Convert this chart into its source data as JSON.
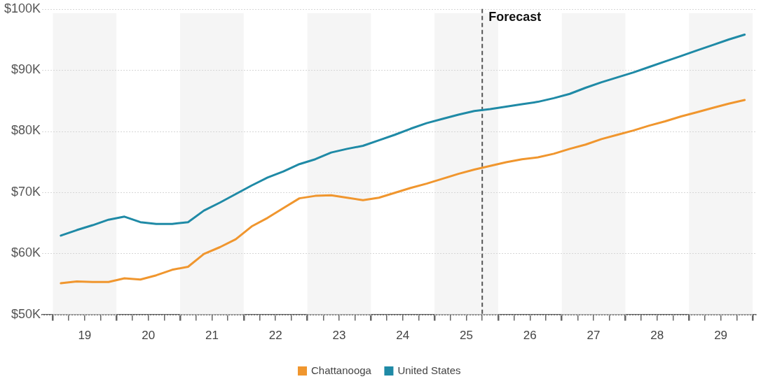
{
  "chart_data": {
    "type": "line",
    "x": [
      18.625,
      18.875,
      19.125,
      19.375,
      19.625,
      19.875,
      20.125,
      20.375,
      20.625,
      20.875,
      21.125,
      21.375,
      21.625,
      21.875,
      22.125,
      22.375,
      22.625,
      22.875,
      23.125,
      23.375,
      23.625,
      23.875,
      24.125,
      24.375,
      24.625,
      24.875,
      25.125,
      25.375,
      25.625,
      25.875,
      26.125,
      26.375,
      26.625,
      26.875,
      27.125,
      27.375,
      27.625,
      27.875,
      28.125,
      28.375,
      28.625,
      28.875,
      29.125,
      29.375
    ],
    "series": [
      {
        "name": "Chattanooga",
        "color": "#f0962e",
        "values": [
          55.1,
          55.4,
          55.3,
          55.3,
          55.9,
          55.7,
          56.4,
          57.3,
          57.8,
          59.9,
          61.0,
          62.3,
          64.4,
          65.8,
          67.4,
          69.0,
          69.4,
          69.5,
          69.1,
          68.7,
          69.1,
          69.9,
          70.7,
          71.4,
          72.2,
          73.0,
          73.7,
          74.3,
          74.9,
          75.4,
          75.7,
          76.3,
          77.1,
          77.8,
          78.7,
          79.4,
          80.1,
          80.9,
          81.6,
          82.4,
          83.1,
          83.8,
          84.5,
          85.1
        ]
      },
      {
        "name": "United States",
        "color": "#1f8aa6",
        "values": [
          62.9,
          63.8,
          64.6,
          65.5,
          66.0,
          65.1,
          64.8,
          64.8,
          65.1,
          67.0,
          68.3,
          69.7,
          71.1,
          72.4,
          73.4,
          74.6,
          75.4,
          76.5,
          77.1,
          77.6,
          78.5,
          79.4,
          80.4,
          81.3,
          82.0,
          82.7,
          83.3,
          83.6,
          84.0,
          84.4,
          84.8,
          85.4,
          86.1,
          87.1,
          88.0,
          88.8,
          89.6,
          90.5,
          91.4,
          92.3,
          93.2,
          94.1,
          95.0,
          95.8
        ]
      }
    ],
    "xlim": [
      18.33,
      29.55
    ],
    "xticks": [
      {
        "value": 18.5,
        "label": null
      },
      {
        "value": 18.75,
        "label": null
      },
      19,
      {
        "value": 19.25,
        "label": null
      },
      {
        "value": 19.5,
        "label": null
      },
      {
        "value": 19.75,
        "label": null
      },
      20,
      {
        "value": 20.25,
        "label": null
      },
      {
        "value": 20.5,
        "label": null
      },
      {
        "value": 20.75,
        "label": null
      },
      21,
      {
        "value": 21.25,
        "label": null
      },
      {
        "value": 21.5,
        "label": null
      },
      {
        "value": 21.75,
        "label": null
      },
      22,
      {
        "value": 22.25,
        "label": null
      },
      {
        "value": 22.5,
        "label": null
      },
      {
        "value": 22.75,
        "label": null
      },
      23,
      {
        "value": 23.25,
        "label": null
      },
      {
        "value": 23.5,
        "label": null
      },
      {
        "value": 23.75,
        "label": null
      },
      24,
      {
        "value": 24.25,
        "label": null
      },
      {
        "value": 24.5,
        "label": null
      },
      {
        "value": 24.75,
        "label": null
      },
      25,
      {
        "value": 25.25,
        "label": null
      },
      {
        "value": 25.5,
        "label": null
      },
      {
        "value": 25.75,
        "label": null
      },
      26,
      {
        "value": 26.25,
        "label": null
      },
      {
        "value": 26.5,
        "label": null
      },
      {
        "value": 26.75,
        "label": null
      },
      27,
      {
        "value": 27.25,
        "label": null
      },
      {
        "value": 27.5,
        "label": null
      },
      {
        "value": 27.75,
        "label": null
      },
      28,
      {
        "value": 28.25,
        "label": null
      },
      {
        "value": 28.5,
        "label": null
      },
      {
        "value": 28.75,
        "label": null
      },
      29,
      {
        "value": 29.25,
        "label": null
      },
      {
        "value": 29.5,
        "label": null
      }
    ],
    "ylim": [
      50,
      100
    ],
    "yticks": [
      {
        "value": 50,
        "label": "$50K"
      },
      {
        "value": 60,
        "label": "$60K"
      },
      {
        "value": 70,
        "label": "$70K"
      },
      {
        "value": 80,
        "label": "$80K"
      },
      {
        "value": 90,
        "label": "$90K"
      },
      {
        "value": 100,
        "label": "$100K"
      }
    ],
    "bands": [
      {
        "axis": "x",
        "from": 18.5,
        "to": 19.5,
        "color": "#f5f5f5"
      },
      {
        "axis": "x",
        "from": 20.5,
        "to": 21.5,
        "color": "#f5f5f5"
      },
      {
        "axis": "x",
        "from": 22.5,
        "to": 23.5,
        "color": "#f5f5f5"
      },
      {
        "axis": "x",
        "from": 24.5,
        "to": 25.5,
        "color": "#f5f5f5"
      },
      {
        "axis": "x",
        "from": 26.5,
        "to": 27.5,
        "color": "#f5f5f5"
      },
      {
        "axis": "x",
        "from": 28.5,
        "to": 29.5,
        "color": "#f5f5f5"
      }
    ],
    "ref_lines": [
      {
        "axis": "x",
        "value": 25.25,
        "label": "Forecast",
        "color": "#555555",
        "line_style": "dashed"
      }
    ],
    "grid": "y",
    "legend": "bottom",
    "marker": "none",
    "line_style": "solid"
  }
}
